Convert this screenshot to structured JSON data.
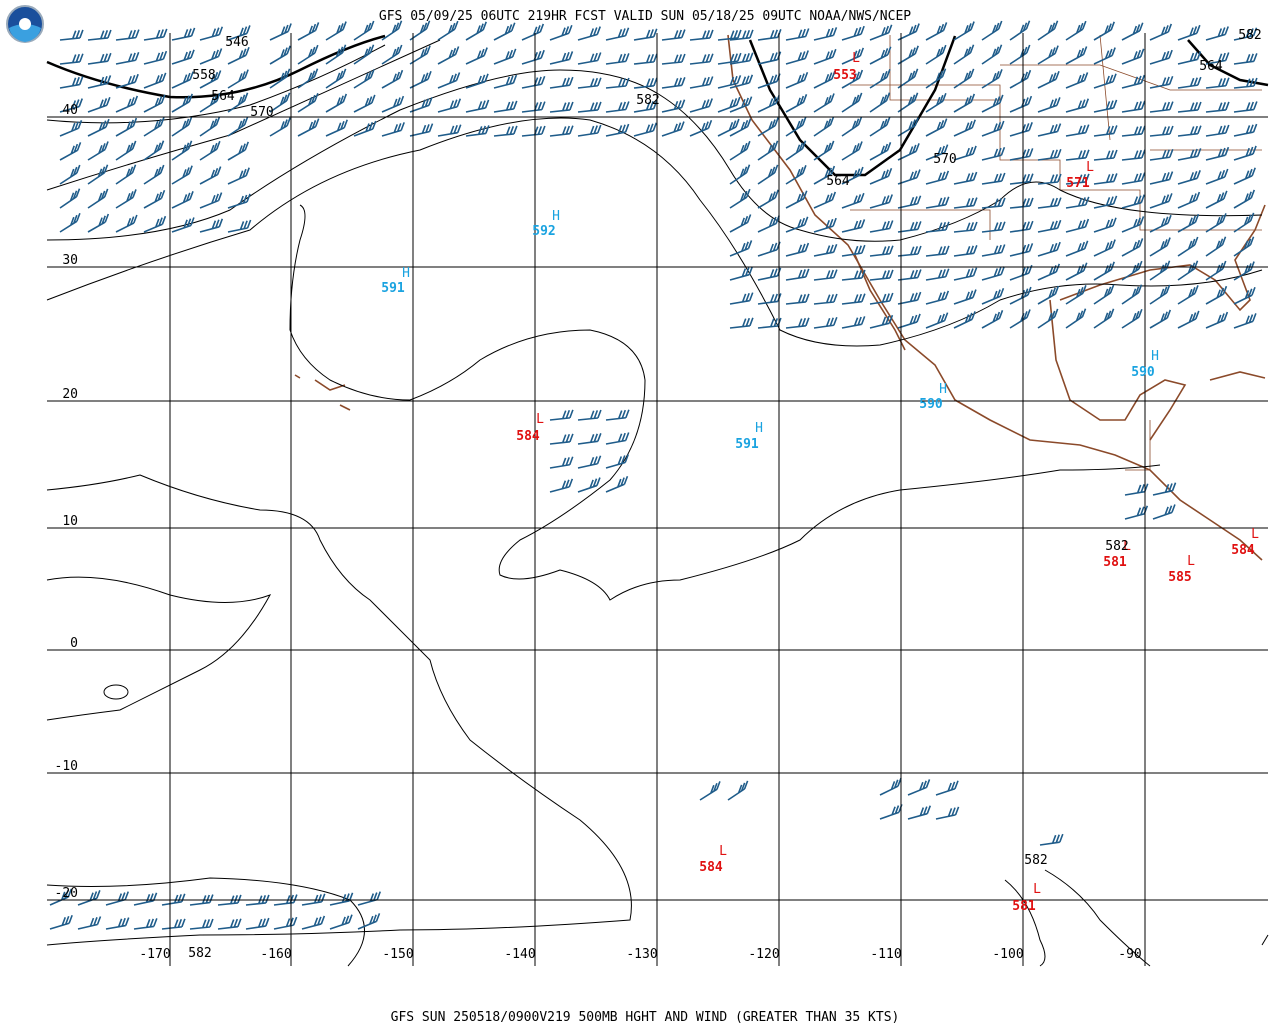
{
  "header": {
    "title": "GFS 05/09/25 06UTC 219HR FCST VALID SUN 05/18/25 09UTC NOAA/NWS/NCEP"
  },
  "footer": {
    "caption": "GFS SUN 250518/0900V219 500MB HGHT AND WIND (GREATER THAN 35 KTS)"
  },
  "map": {
    "latitude_labels": [
      "40",
      "30",
      "20",
      "10",
      "0",
      "-10",
      "-20"
    ],
    "longitude_labels": [
      "-170",
      "-160",
      "-150",
      "-140",
      "-130",
      "-120",
      "-110",
      "-100",
      "-90"
    ],
    "centers": [
      {
        "symbol": "H",
        "value": "592"
      },
      {
        "symbol": "H",
        "value": "591"
      },
      {
        "symbol": "H",
        "value": "591"
      },
      {
        "symbol": "H",
        "value": "590"
      },
      {
        "symbol": "H",
        "value": "590"
      },
      {
        "symbol": "L",
        "value": "584"
      },
      {
        "symbol": "L",
        "value": "584"
      },
      {
        "symbol": "L",
        "value": "581"
      },
      {
        "symbol": "L",
        "value": "571"
      },
      {
        "symbol": "L",
        "value": "553"
      },
      {
        "symbol": "L",
        "value": "581"
      },
      {
        "symbol": "L",
        "value": "585"
      },
      {
        "symbol": "L",
        "value": "584"
      }
    ],
    "contour_labels": [
      "546",
      "558",
      "564",
      "570",
      "582",
      "564",
      "570",
      "564",
      "582",
      "582",
      "582",
      "582"
    ]
  }
}
